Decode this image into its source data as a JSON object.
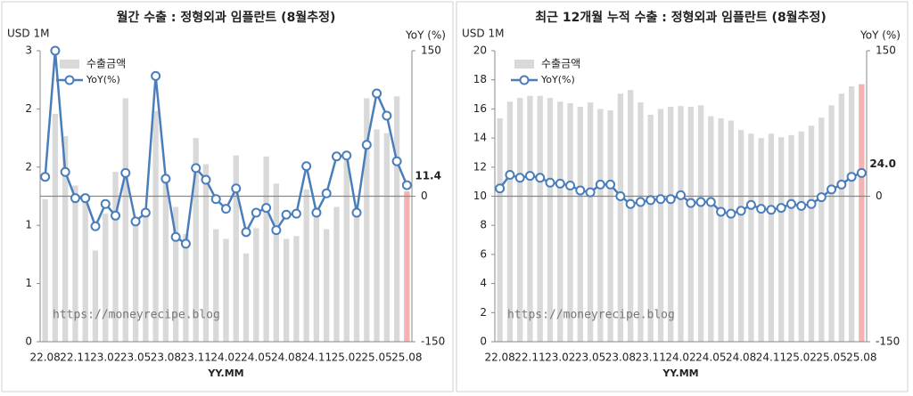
{
  "chart_data": [
    {
      "type": "combo",
      "title": "월간 수출 : 정형외과 임플란트 (8월추정)",
      "y_label": "USD 1M",
      "y2_label": "YoY (%)",
      "x_label": "YY.MM",
      "annotation": "https://moneyrecipe.blog",
      "legend": "top left",
      "categories": [
        "22.08",
        null,
        null,
        "22.11",
        null,
        null,
        "23.02",
        null,
        null,
        "23.05",
        null,
        null,
        "23.08",
        null,
        null,
        "23.11",
        null,
        null,
        "24.02",
        null,
        null,
        "24.05",
        null,
        null,
        "24.08",
        null,
        null,
        "24.11",
        null,
        null,
        "25.02",
        null,
        null,
        "25.05",
        null,
        null,
        "25.08"
      ],
      "ylim": [
        0,
        3
      ],
      "yticks": [
        0,
        {
          "value": 0.6,
          "label": "1"
        },
        {
          "value": 1.2,
          "label": "1"
        },
        {
          "value": 1.8,
          "label": "2"
        },
        {
          "value": 2.4,
          "label": "2"
        },
        3
      ],
      "y2lim": [
        -150,
        150
      ],
      "y2ticks": [
        -150,
        0,
        150
      ],
      "series": [
        {
          "name": "수출금액",
          "kind": "bar",
          "color": "#d9d9d9",
          "colors": [
            "#d9d9d9",
            "#d9d9d9",
            "#d9d9d9",
            "#d9d9d9",
            "#d9d9d9",
            "#d9d9d9",
            "#d9d9d9",
            "#d9d9d9",
            "#d9d9d9",
            "#d9d9d9",
            "#d9d9d9",
            "#d9d9d9",
            "#d9d9d9",
            "#d9d9d9",
            "#d9d9d9",
            "#d9d9d9",
            "#d9d9d9",
            "#d9d9d9",
            "#d9d9d9",
            "#d9d9d9",
            "#d9d9d9",
            "#d9d9d9",
            "#d9d9d9",
            "#d9d9d9",
            "#d9d9d9",
            "#d9d9d9",
            "#d9d9d9",
            "#d9d9d9",
            "#d9d9d9",
            "#d9d9d9",
            "#d9d9d9",
            "#d9d9d9",
            "#d9d9d9",
            "#d9d9d9",
            "#d9d9d9",
            "#d9d9d9",
            "#f4b2b2"
          ],
          "values": [
            1.47,
            2.35,
            2.12,
            1.61,
            1.49,
            0.94,
            1.32,
            1.75,
            2.51,
            1.25,
            1.37,
            2.38,
            1.73,
            1.39,
            1.11,
            2.1,
            1.83,
            1.16,
            1.06,
            1.92,
            0.91,
            1.17,
            1.91,
            1.63,
            1.06,
            1.09,
            1.57,
            1.39,
            1.16,
            1.39,
            1.87,
            1.29,
            2.51,
            2.19,
            2.15,
            2.53,
            1.55
          ]
        },
        {
          "name": "YoY(%)",
          "kind": "line",
          "axis": "y2",
          "color": "#4a7ebb",
          "values": [
            20,
            150,
            25,
            -2,
            -2,
            -31,
            -8,
            -20,
            24,
            -26,
            -17,
            124,
            18,
            -42,
            -49,
            29,
            17,
            -3,
            -13,
            8,
            -37,
            -17,
            -12,
            -35,
            -19,
            -18,
            31,
            -17,
            3,
            41,
            42,
            -17,
            53,
            106,
            83,
            36,
            11.4
          ],
          "value_labels": [
            null,
            null,
            null,
            null,
            null,
            null,
            null,
            null,
            null,
            null,
            null,
            null,
            null,
            null,
            null,
            null,
            null,
            null,
            null,
            null,
            null,
            null,
            null,
            null,
            null,
            null,
            null,
            null,
            null,
            null,
            null,
            null,
            null,
            null,
            null,
            null,
            "11.4"
          ],
          "label_color": "#e02020"
        }
      ]
    },
    {
      "type": "combo",
      "title": "최근 12개월 누적 수출 : 정형외과 임플란트 (8월추정)",
      "y_label": "USD 1M",
      "y2_label": "YoY (%)",
      "x_label": "YY.MM",
      "annotation": "https://moneyrecipe.blog",
      "legend": "top left",
      "categories": [
        "22.08",
        null,
        null,
        "22.11",
        null,
        null,
        "23.02",
        null,
        null,
        "23.05",
        null,
        null,
        "23.08",
        null,
        null,
        "23.11",
        null,
        null,
        "24.02",
        null,
        null,
        "24.05",
        null,
        null,
        "24.08",
        null,
        null,
        "24.11",
        null,
        null,
        "25.02",
        null,
        null,
        "25.05",
        null,
        null,
        "25.08"
      ],
      "ylim": [
        0,
        20
      ],
      "yticks": [
        0,
        2,
        4,
        6,
        8,
        10,
        12,
        14,
        16,
        18,
        20
      ],
      "y2lim": [
        -150,
        150
      ],
      "y2ticks": [
        -150,
        0,
        150
      ],
      "series": [
        {
          "name": "수출금액",
          "kind": "bar",
          "color": "#d9d9d9",
          "colors": [
            "#d9d9d9",
            "#d9d9d9",
            "#d9d9d9",
            "#d9d9d9",
            "#d9d9d9",
            "#d9d9d9",
            "#d9d9d9",
            "#d9d9d9",
            "#d9d9d9",
            "#d9d9d9",
            "#d9d9d9",
            "#d9d9d9",
            "#d9d9d9",
            "#d9d9d9",
            "#d9d9d9",
            "#d9d9d9",
            "#d9d9d9",
            "#d9d9d9",
            "#d9d9d9",
            "#d9d9d9",
            "#d9d9d9",
            "#d9d9d9",
            "#d9d9d9",
            "#d9d9d9",
            "#d9d9d9",
            "#d9d9d9",
            "#d9d9d9",
            "#d9d9d9",
            "#d9d9d9",
            "#d9d9d9",
            "#d9d9d9",
            "#d9d9d9",
            "#d9d9d9",
            "#d9d9d9",
            "#d9d9d9",
            "#d9d9d9",
            "#f4b2b2"
          ],
          "values": [
            15.35,
            16.5,
            16.75,
            16.9,
            16.9,
            16.75,
            16.5,
            16.4,
            16.15,
            16.45,
            16.0,
            15.9,
            17.05,
            17.3,
            16.45,
            15.6,
            16.0,
            16.15,
            16.2,
            16.15,
            16.25,
            15.5,
            15.35,
            15.2,
            14.55,
            14.3,
            14.0,
            14.3,
            14.05,
            14.2,
            14.45,
            14.85,
            15.4,
            16.25,
            17.05,
            17.55,
            17.7
          ]
        },
        {
          "name": "YoY(%)",
          "kind": "line",
          "axis": "y2",
          "color": "#4a7ebb",
          "values": [
            8,
            22,
            19,
            21,
            19,
            14,
            13,
            11,
            6,
            4,
            12,
            12,
            0,
            -8,
            -6,
            -4,
            -3,
            -3,
            1,
            -7,
            -6,
            -6,
            -16,
            -18,
            -15,
            -9,
            -13,
            -14,
            -12,
            -8,
            -10,
            -8,
            -1,
            7,
            12,
            20,
            24
          ],
          "value_labels": [
            null,
            null,
            null,
            null,
            null,
            null,
            null,
            null,
            null,
            null,
            null,
            null,
            null,
            null,
            null,
            null,
            null,
            null,
            null,
            null,
            null,
            null,
            null,
            null,
            null,
            null,
            null,
            null,
            null,
            null,
            null,
            null,
            null,
            null,
            null,
            null,
            "24.0"
          ],
          "label_color": "#e02020"
        }
      ]
    }
  ]
}
